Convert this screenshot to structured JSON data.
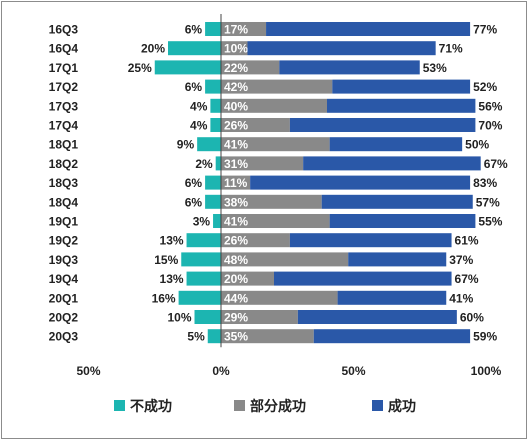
{
  "chart_data": {
    "type": "bar",
    "orientation": "horizontal",
    "stacked": true,
    "categories": [
      "16Q3",
      "16Q4",
      "17Q1",
      "17Q2",
      "17Q3",
      "17Q4",
      "18Q1",
      "18Q2",
      "18Q3",
      "18Q4",
      "19Q1",
      "19Q2",
      "19Q3",
      "19Q4",
      "20Q1",
      "20Q2",
      "20Q3"
    ],
    "series": [
      {
        "name": "不成功",
        "direction": "negative",
        "color": "#1cb5b1",
        "values": [
          6,
          20,
          25,
          6,
          4,
          4,
          9,
          2,
          6,
          6,
          3,
          13,
          15,
          13,
          16,
          10,
          5
        ],
        "labels": [
          "6%",
          "20%",
          "25%",
          "6%",
          "4%",
          "4%",
          "9%",
          "2%",
          "6%",
          "6%",
          "3%",
          "13%",
          "15%",
          "13%",
          "16%",
          "10%",
          "5%"
        ]
      },
      {
        "name": "部分成功",
        "direction": "positive",
        "color": "#898989",
        "values": [
          17,
          10,
          22,
          42,
          40,
          26,
          41,
          31,
          11,
          38,
          41,
          26,
          48,
          20,
          44,
          29,
          35
        ],
        "labels": [
          "17%",
          "10%",
          "22%",
          "42%",
          "40%",
          "26%",
          "41%",
          "31%",
          "11%",
          "38%",
          "41%",
          "26%",
          "48%",
          "20%",
          "44%",
          "29%",
          "35%"
        ]
      },
      {
        "name": "成功",
        "direction": "positive",
        "color": "#2a58a8",
        "values": [
          77,
          71,
          53,
          52,
          56,
          70,
          50,
          67,
          83,
          57,
          55,
          61,
          37,
          67,
          41,
          60,
          59
        ],
        "labels": [
          "77%",
          "71%",
          "53%",
          "52%",
          "56%",
          "70%",
          "50%",
          "67%",
          "83%",
          "57%",
          "55%",
          "61%",
          "37%",
          "67%",
          "41%",
          "60%",
          "59%"
        ]
      }
    ],
    "xlim": [
      -50,
      100
    ],
    "x_ticks": [
      "50%",
      "0%",
      "50%",
      "100%"
    ],
    "grid": false,
    "legend_position": "bottom",
    "title": "",
    "xlabel": "",
    "ylabel": ""
  }
}
